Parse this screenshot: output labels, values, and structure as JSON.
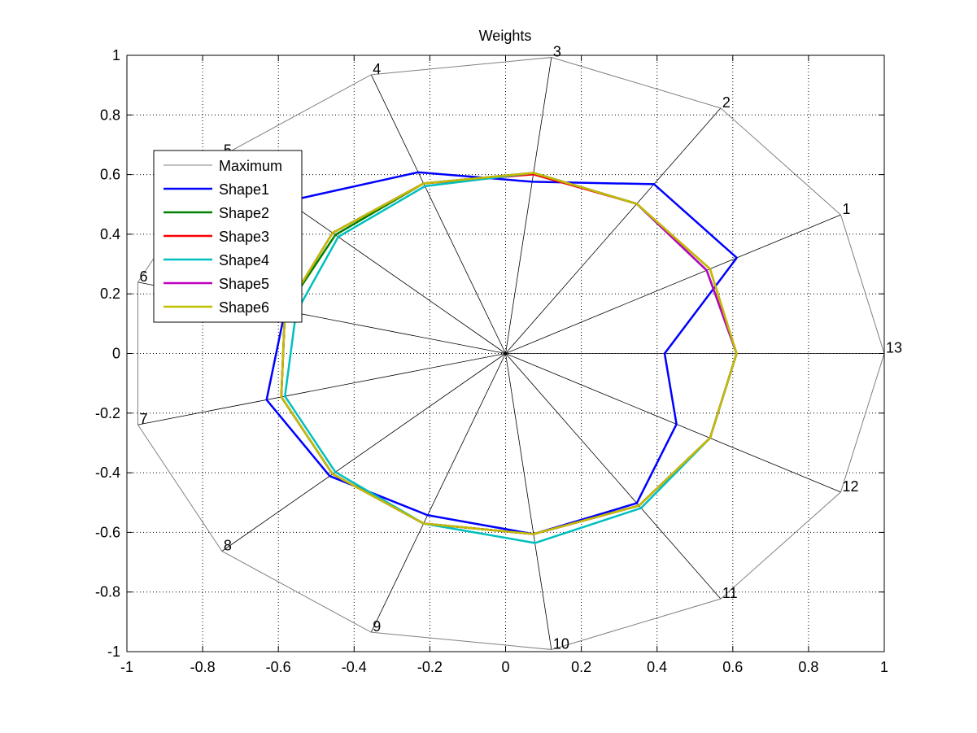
{
  "chart_data": {
    "type": "line",
    "title": "Weights",
    "xlabel": "",
    "ylabel": "",
    "xlim": [
      -1,
      1
    ],
    "ylim": [
      -1,
      1
    ],
    "x_ticks": [
      -1,
      -0.8,
      -0.6,
      -0.4,
      -0.2,
      0,
      0.2,
      0.4,
      0.6,
      0.8,
      1
    ],
    "y_ticks": [
      -1,
      -0.8,
      -0.6,
      -0.4,
      -0.2,
      0,
      0.2,
      0.4,
      0.6,
      0.8,
      1
    ],
    "x_tick_labels": [
      "-1",
      "-0.8",
      "-0.6",
      "-0.4",
      "-0.2",
      "0",
      "0.2",
      "0.4",
      "0.6",
      "0.8",
      "1"
    ],
    "y_tick_labels": [
      "-1",
      "-0.8",
      "-0.6",
      "-0.4",
      "-0.2",
      "0",
      "0.2",
      "0.4",
      "0.6",
      "0.8",
      "1"
    ],
    "grid": true,
    "legend_position": "top-left",
    "spokes": [
      {
        "label": "1",
        "x": 0.885,
        "y": 0.465
      },
      {
        "label": "2",
        "x": 0.568,
        "y": 0.823
      },
      {
        "label": "3",
        "x": 0.121,
        "y": 0.993
      },
      {
        "label": "4",
        "x": -0.355,
        "y": 0.935
      },
      {
        "label": "5",
        "x": -0.749,
        "y": 0.663
      },
      {
        "label": "6",
        "x": -0.971,
        "y": 0.239
      },
      {
        "label": "7",
        "x": -0.971,
        "y": -0.239
      },
      {
        "label": "8",
        "x": -0.749,
        "y": -0.663
      },
      {
        "label": "9",
        "x": -0.355,
        "y": -0.935
      },
      {
        "label": "10",
        "x": 0.121,
        "y": -0.993
      },
      {
        "label": "11",
        "x": 0.568,
        "y": -0.823
      },
      {
        "label": "12",
        "x": 0.885,
        "y": -0.465
      },
      {
        "label": "13",
        "x": 1.0,
        "y": 0.0
      }
    ],
    "series": [
      {
        "name": "Maximum",
        "color": "#808080",
        "width": 1,
        "radii": [
          1,
          1,
          1,
          1,
          1,
          1,
          1,
          1,
          1,
          1,
          1,
          1,
          1
        ]
      },
      {
        "name": "Shape1",
        "color": "#0000ff",
        "width": 2.5,
        "radii": [
          0.69,
          0.69,
          0.58,
          0.65,
          0.77,
          0.6,
          0.65,
          0.62,
          0.58,
          0.61,
          0.61,
          0.51,
          0.42
        ]
      },
      {
        "name": "Shape2",
        "color": "#008000",
        "width": 2.5,
        "radii": [
          0.6,
          0.61,
          0.61,
          0.61,
          0.6,
          0.6,
          0.61,
          0.61,
          0.61,
          0.61,
          0.62,
          0.61,
          0.61
        ]
      },
      {
        "name": "Shape3",
        "color": "#ff0000",
        "width": 2.5,
        "radii": [
          0.61,
          0.61,
          0.605,
          0.61,
          0.61,
          0.6,
          0.61,
          0.61,
          0.61,
          0.61,
          0.62,
          0.61,
          0.61
        ]
      },
      {
        "name": "Shape4",
        "color": "#00bfbf",
        "width": 2.5,
        "radii": [
          0.6,
          0.61,
          0.61,
          0.6,
          0.59,
          0.57,
          0.6,
          0.6,
          0.61,
          0.64,
          0.63,
          0.61,
          0.61
        ]
      },
      {
        "name": "Shape5",
        "color": "#bf00bf",
        "width": 2.5,
        "radii": [
          0.6,
          0.61,
          0.61,
          0.61,
          0.61,
          0.6,
          0.61,
          0.61,
          0.61,
          0.61,
          0.62,
          0.61,
          0.61
        ]
      },
      {
        "name": "Shape6",
        "color": "#bfbf00",
        "width": 2.5,
        "radii": [
          0.61,
          0.61,
          0.61,
          0.61,
          0.61,
          0.6,
          0.61,
          0.61,
          0.61,
          0.61,
          0.62,
          0.61,
          0.61
        ]
      }
    ]
  }
}
